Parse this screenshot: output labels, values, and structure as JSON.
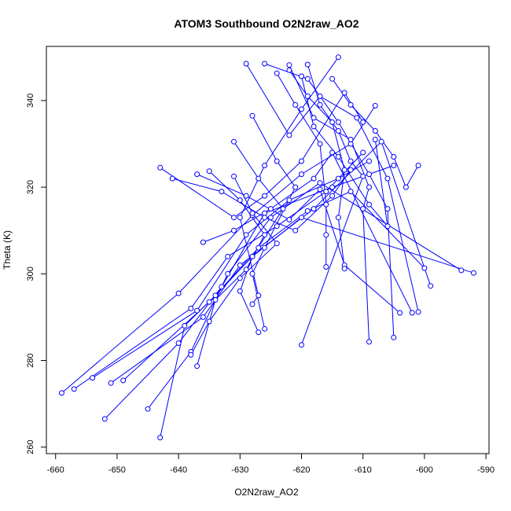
{
  "chart_data": {
    "type": "scatter",
    "title": "ATOM3 Southbound O2N2raw_AO2",
    "xlabel": "O2N2raw_AO2",
    "ylabel": "Theta (K)",
    "xlim": [
      -661.5,
      -589.5
    ],
    "ylim": [
      258.5,
      352.5
    ],
    "x_ticks": [
      -660,
      -650,
      -640,
      -630,
      -620,
      -610,
      -600,
      -590
    ],
    "y_ticks": [
      260,
      280,
      300,
      320,
      340
    ],
    "x_tick_labels": [
      "-660",
      "-650",
      "-640",
      "-630",
      "-620",
      "-610",
      "-600",
      "-590"
    ],
    "y_tick_labels": [
      "260",
      "280",
      "300",
      "320",
      "340"
    ],
    "series_color": "#0000ff",
    "marker": "open-circle",
    "connected": true,
    "series": [
      {
        "segments": [
          [
            [
              -659,
              272.5
            ],
            [
              -640,
              295.5
            ],
            [
              -628,
              313.5
            ],
            [
              -620,
              323
            ],
            [
              -612,
              330
            ],
            [
              -608,
              338.8
            ]
          ],
          [
            [
              -657,
              273.4
            ],
            [
              -638,
              292
            ],
            [
              -632,
              304
            ],
            [
              -624,
              311
            ],
            [
              -616,
              319
            ],
            [
              -610,
              328
            ]
          ],
          [
            [
              -654,
              276
            ],
            [
              -637,
              291.5
            ],
            [
              -629,
              309
            ],
            [
              -622,
              317
            ],
            [
              -614,
              322
            ],
            [
              -609,
              326
            ]
          ],
          [
            [
              -652,
              266.5
            ],
            [
              -640,
              284
            ],
            [
              -633,
              297
            ],
            [
              -626,
              314
            ],
            [
              -615,
              320
            ],
            [
              -605,
              325
            ]
          ],
          [
            [
              -651,
              274.8
            ],
            [
              -636,
              290
            ],
            [
              -630,
              302
            ],
            [
              -618,
              315
            ],
            [
              -607,
              330.5
            ],
            [
              -599,
              297.2
            ]
          ],
          [
            [
              -649,
              275.4
            ],
            [
              -635,
              293.5
            ],
            [
              -627,
              306
            ],
            [
              -619,
              314.5
            ],
            [
              -612,
              319
            ],
            [
              -600,
              301.3
            ]
          ],
          [
            [
              -645,
              268.8
            ],
            [
              -638,
              282
            ],
            [
              -632,
              300
            ],
            [
              -625,
              313
            ],
            [
              -617,
              321
            ],
            [
              -594,
              300.8
            ]
          ],
          [
            [
              -643,
              262.2
            ],
            [
              -639,
              288
            ],
            [
              -634,
              295
            ],
            [
              -628,
              304
            ],
            [
              -620,
              313
            ],
            [
              -592,
              300.2
            ]
          ],
          [
            [
              -643,
              324.5
            ],
            [
              -631,
              313
            ],
            [
              -626,
              318
            ],
            [
              -620,
              326
            ],
            [
              -613,
              341.8
            ],
            [
              -610,
              335
            ]
          ],
          [
            [
              -641,
              322
            ],
            [
              -633,
              319
            ],
            [
              -626,
              313
            ],
            [
              -621,
              310
            ],
            [
              -615,
              318
            ],
            [
              -612,
              324
            ]
          ],
          [
            [
              -637,
              323
            ],
            [
              -629,
              318
            ],
            [
              -622,
              312.5
            ],
            [
              -617,
              319.5
            ],
            [
              -613,
              302
            ],
            [
              -604,
              291
            ]
          ],
          [
            [
              -636,
              307.3
            ],
            [
              -631,
              310
            ],
            [
              -625,
              315
            ],
            [
              -618,
              322
            ],
            [
              -615,
              328
            ],
            [
              -602,
              291
            ]
          ],
          [
            [
              -629,
              348.5
            ],
            [
              -622,
              332
            ],
            [
              -617,
              341
            ],
            [
              -611,
              336
            ],
            [
              -606,
              322
            ],
            [
              -601,
              291.2
            ]
          ],
          [
            [
              -626,
              348.5
            ],
            [
              -619,
              345
            ],
            [
              -614,
              335
            ],
            [
              -609,
              323
            ],
            [
              -606,
              315
            ],
            [
              -605,
              285.3
            ]
          ],
          [
            [
              -622,
              348.2
            ],
            [
              -618,
              336
            ],
            [
              -612,
              331
            ],
            [
              -609,
              320
            ],
            [
              -610,
              315
            ],
            [
              -609,
              284.3
            ]
          ],
          [
            [
              -619,
              348.3
            ],
            [
              -617,
              339
            ],
            [
              -614,
              333
            ],
            [
              -612,
              326
            ],
            [
              -610,
              322.5
            ],
            [
              -620,
              283.6
            ]
          ],
          [
            [
              -614,
              350
            ],
            [
              -620,
              338
            ],
            [
              -626,
              325
            ],
            [
              -630,
              313
            ],
            [
              -627,
              295
            ],
            [
              -628,
              293
            ]
          ],
          [
            [
              -628,
              336.5
            ],
            [
              -624,
              326
            ],
            [
              -621,
              320
            ],
            [
              -626,
              306
            ],
            [
              -628,
              300
            ],
            [
              -626,
              287.3
            ]
          ],
          [
            [
              -631,
              330.5
            ],
            [
              -627,
              322
            ],
            [
              -623,
              315
            ],
            [
              -628,
              304
            ],
            [
              -630,
              296
            ],
            [
              -627,
              286.5
            ]
          ],
          [
            [
              -635,
              323.7
            ],
            [
              -630,
              317
            ],
            [
              -626,
              309
            ],
            [
              -629,
              301
            ],
            [
              -634,
              294
            ],
            [
              -637,
              278.7
            ]
          ],
          [
            [
              -631,
              322.5
            ],
            [
              -628,
              314
            ],
            [
              -624,
              307
            ],
            [
              -630,
              299
            ],
            [
              -635,
              289
            ],
            [
              -638,
              281.3
            ]
          ],
          [
            [
              -624,
              346.3
            ],
            [
              -621,
              339
            ],
            [
              -617,
              330
            ],
            [
              -616,
              316
            ],
            [
              -616,
              309
            ],
            [
              -616,
              301.6
            ]
          ],
          [
            [
              -622,
              347
            ],
            [
              -619,
              341
            ],
            [
              -615,
              335
            ],
            [
              -613,
              324
            ],
            [
              -614,
              313
            ],
            [
              -613,
              301.2
            ]
          ],
          [
            [
              -620,
              345.6
            ],
            [
              -618,
              334
            ],
            [
              -614,
              327
            ],
            [
              -609,
              316
            ],
            [
              -606,
              311
            ],
            [
              -608,
              331
            ]
          ],
          [
            [
              -615,
              345
            ],
            [
              -612,
              339
            ],
            [
              -608,
              333
            ],
            [
              -605,
              327
            ],
            [
              -603,
              320
            ],
            [
              -601,
              325
            ]
          ]
        ]
      }
    ]
  }
}
